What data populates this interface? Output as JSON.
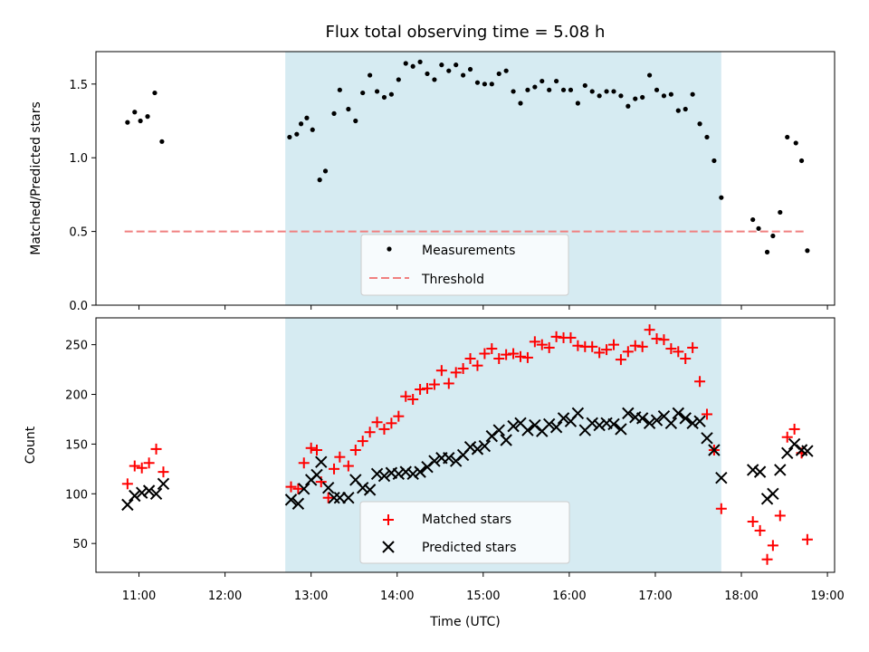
{
  "chart_data": [
    {
      "type": "scatter",
      "title": "Flux total observing time = 5.08 h",
      "ylabel": "Matched/Predicted stars",
      "ylim": [
        0,
        1.72
      ],
      "yticks": [
        "0.0",
        "0.5",
        "1.0",
        "1.5"
      ],
      "xlim": [
        "10:30",
        "19:05"
      ],
      "xtick_labels": [
        "11:00",
        "12:00",
        "13:00",
        "14:00",
        "15:00",
        "16:00",
        "17:00",
        "18:00",
        "19:00"
      ],
      "shaded_interval": [
        "12:42",
        "17:46"
      ],
      "legend_position": "lower center",
      "threshold": {
        "name": "Threshold",
        "y": 0.5,
        "x_range": [
          "10:50",
          "18:45"
        ],
        "color": "#f08080"
      },
      "series": [
        {
          "name": "Measurements",
          "color": "#000000",
          "marker": "dot",
          "points": [
            [
              "10:52",
              1.24
            ],
            [
              "10:57",
              1.31
            ],
            [
              "11:01",
              1.25
            ],
            [
              "11:06",
              1.28
            ],
            [
              "11:11",
              1.44
            ],
            [
              "11:16",
              1.11
            ],
            [
              "12:45",
              1.14
            ],
            [
              "12:50",
              1.16
            ],
            [
              "12:53",
              1.23
            ],
            [
              "12:57",
              1.27
            ],
            [
              "13:01",
              1.19
            ],
            [
              "13:06",
              0.85
            ],
            [
              "13:10",
              0.91
            ],
            [
              "13:16",
              1.3
            ],
            [
              "13:20",
              1.46
            ],
            [
              "13:26",
              1.33
            ],
            [
              "13:31",
              1.25
            ],
            [
              "13:36",
              1.44
            ],
            [
              "13:41",
              1.56
            ],
            [
              "13:46",
              1.45
            ],
            [
              "13:51",
              1.41
            ],
            [
              "13:56",
              1.43
            ],
            [
              "14:01",
              1.53
            ],
            [
              "14:06",
              1.64
            ],
            [
              "14:11",
              1.62
            ],
            [
              "14:16",
              1.65
            ],
            [
              "14:21",
              1.57
            ],
            [
              "14:26",
              1.53
            ],
            [
              "14:31",
              1.63
            ],
            [
              "14:36",
              1.59
            ],
            [
              "14:41",
              1.63
            ],
            [
              "14:46",
              1.56
            ],
            [
              "14:51",
              1.6
            ],
            [
              "14:56",
              1.51
            ],
            [
              "15:01",
              1.5
            ],
            [
              "15:06",
              1.5
            ],
            [
              "15:11",
              1.57
            ],
            [
              "15:16",
              1.59
            ],
            [
              "15:21",
              1.45
            ],
            [
              "15:26",
              1.37
            ],
            [
              "15:31",
              1.46
            ],
            [
              "15:36",
              1.48
            ],
            [
              "15:41",
              1.52
            ],
            [
              "15:46",
              1.46
            ],
            [
              "15:51",
              1.52
            ],
            [
              "15:56",
              1.46
            ],
            [
              "16:01",
              1.46
            ],
            [
              "16:06",
              1.37
            ],
            [
              "16:11",
              1.49
            ],
            [
              "16:16",
              1.45
            ],
            [
              "16:21",
              1.42
            ],
            [
              "16:26",
              1.45
            ],
            [
              "16:31",
              1.45
            ],
            [
              "16:36",
              1.42
            ],
            [
              "16:41",
              1.35
            ],
            [
              "16:46",
              1.4
            ],
            [
              "16:51",
              1.41
            ],
            [
              "16:56",
              1.56
            ],
            [
              "17:01",
              1.46
            ],
            [
              "17:06",
              1.42
            ],
            [
              "17:11",
              1.43
            ],
            [
              "17:16",
              1.32
            ],
            [
              "17:21",
              1.33
            ],
            [
              "17:26",
              1.43
            ],
            [
              "17:31",
              1.23
            ],
            [
              "17:36",
              1.14
            ],
            [
              "17:41",
              0.98
            ],
            [
              "17:46",
              0.73
            ],
            [
              "18:08",
              0.58
            ],
            [
              "18:12",
              0.52
            ],
            [
              "18:18",
              0.36
            ],
            [
              "18:22",
              0.47
            ],
            [
              "18:27",
              0.63
            ],
            [
              "18:32",
              1.14
            ],
            [
              "18:38",
              1.1
            ],
            [
              "18:42",
              0.98
            ],
            [
              "18:46",
              0.37
            ]
          ]
        }
      ]
    },
    {
      "type": "scatter",
      "ylabel": "Count",
      "xlabel": "Time (UTC)",
      "ylim": [
        21,
        277
      ],
      "yticks": [
        "50",
        "100",
        "150",
        "200",
        "250"
      ],
      "xlim": [
        "10:30",
        "19:05"
      ],
      "xtick_labels": [
        "11:00",
        "12:00",
        "13:00",
        "14:00",
        "15:00",
        "16:00",
        "17:00",
        "18:00",
        "19:00"
      ],
      "shaded_interval": [
        "12:42",
        "17:46"
      ],
      "legend_position": "lower center",
      "series": [
        {
          "name": "Matched stars",
          "color": "#ff0000",
          "marker": "plus",
          "points": [
            [
              "10:52",
              110
            ],
            [
              "10:57",
              128
            ],
            [
              "11:02",
              126
            ],
            [
              "11:07",
              131
            ],
            [
              "11:12",
              145
            ],
            [
              "11:17",
              122
            ],
            [
              "12:46",
              107
            ],
            [
              "12:51",
              105
            ],
            [
              "12:55",
              131
            ],
            [
              "13:00",
              146
            ],
            [
              "13:04",
              144
            ],
            [
              "13:07",
              112
            ],
            [
              "13:12",
              96
            ],
            [
              "13:16",
              125
            ],
            [
              "13:20",
              137
            ],
            [
              "13:26",
              128
            ],
            [
              "13:31",
              144
            ],
            [
              "13:36",
              153
            ],
            [
              "13:41",
              162
            ],
            [
              "13:46",
              172
            ],
            [
              "13:51",
              165
            ],
            [
              "13:56",
              171
            ],
            [
              "14:01",
              178
            ],
            [
              "14:06",
              198
            ],
            [
              "14:11",
              195
            ],
            [
              "14:16",
              205
            ],
            [
              "14:21",
              206
            ],
            [
              "14:26",
              210
            ],
            [
              "14:31",
              224
            ],
            [
              "14:36",
              211
            ],
            [
              "14:41",
              222
            ],
            [
              "14:46",
              226
            ],
            [
              "14:51",
              236
            ],
            [
              "14:56",
              229
            ],
            [
              "15:01",
              241
            ],
            [
              "15:06",
              246
            ],
            [
              "15:11",
              236
            ],
            [
              "15:16",
              240
            ],
            [
              "15:21",
              241
            ],
            [
              "15:26",
              238
            ],
            [
              "15:31",
              237
            ],
            [
              "15:36",
              253
            ],
            [
              "15:41",
              250
            ],
            [
              "15:46",
              247
            ],
            [
              "15:51",
              258
            ],
            [
              "15:56",
              257
            ],
            [
              "16:01",
              257
            ],
            [
              "16:06",
              249
            ],
            [
              "16:11",
              248
            ],
            [
              "16:16",
              248
            ],
            [
              "16:21",
              242
            ],
            [
              "16:26",
              245
            ],
            [
              "16:31",
              250
            ],
            [
              "16:36",
              235
            ],
            [
              "16:41",
              243
            ],
            [
              "16:46",
              249
            ],
            [
              "16:51",
              248
            ],
            [
              "16:56",
              265
            ],
            [
              "17:01",
              256
            ],
            [
              "17:06",
              255
            ],
            [
              "17:11",
              246
            ],
            [
              "17:16",
              243
            ],
            [
              "17:21",
              236
            ],
            [
              "17:26",
              247
            ],
            [
              "17:31",
              213
            ],
            [
              "17:36",
              180
            ],
            [
              "17:41",
              144
            ],
            [
              "17:46",
              85
            ],
            [
              "18:08",
              72
            ],
            [
              "18:13",
              63
            ],
            [
              "18:18",
              34
            ],
            [
              "18:22",
              48
            ],
            [
              "18:27",
              78
            ],
            [
              "18:32",
              157
            ],
            [
              "18:37",
              165
            ],
            [
              "18:42",
              141
            ],
            [
              "18:46",
              54
            ]
          ]
        },
        {
          "name": "Predicted stars",
          "color": "#000000",
          "marker": "x",
          "points": [
            [
              "10:52",
              89
            ],
            [
              "10:57",
              98
            ],
            [
              "11:02",
              101
            ],
            [
              "11:07",
              103
            ],
            [
              "11:12",
              100
            ],
            [
              "11:17",
              110
            ],
            [
              "12:46",
              94
            ],
            [
              "12:51",
              90
            ],
            [
              "12:55",
              105
            ],
            [
              "13:00",
              114
            ],
            [
              "13:04",
              119
            ],
            [
              "13:07",
              132
            ],
            [
              "13:12",
              106
            ],
            [
              "13:16",
              96
            ],
            [
              "13:20",
              96
            ],
            [
              "13:26",
              96
            ],
            [
              "13:31",
              114
            ],
            [
              "13:36",
              106
            ],
            [
              "13:41",
              104
            ],
            [
              "13:46",
              120
            ],
            [
              "13:51",
              118
            ],
            [
              "13:56",
              121
            ],
            [
              "14:01",
              120
            ],
            [
              "14:06",
              122
            ],
            [
              "14:11",
              120
            ],
            [
              "14:16",
              122
            ],
            [
              "14:21",
              127
            ],
            [
              "14:26",
              133
            ],
            [
              "14:31",
              136
            ],
            [
              "14:36",
              136
            ],
            [
              "14:41",
              133
            ],
            [
              "14:46",
              139
            ],
            [
              "14:51",
              147
            ],
            [
              "14:56",
              145
            ],
            [
              "15:01",
              148
            ],
            [
              "15:06",
              158
            ],
            [
              "15:11",
              164
            ],
            [
              "15:16",
              154
            ],
            [
              "15:21",
              168
            ],
            [
              "15:26",
              171
            ],
            [
              "15:31",
              164
            ],
            [
              "15:36",
              169
            ],
            [
              "15:41",
              163
            ],
            [
              "15:46",
              170
            ],
            [
              "15:51",
              167
            ],
            [
              "15:56",
              176
            ],
            [
              "16:01",
              173
            ],
            [
              "16:06",
              181
            ],
            [
              "16:11",
              164
            ],
            [
              "16:16",
              171
            ],
            [
              "16:21",
              169
            ],
            [
              "16:26",
              171
            ],
            [
              "16:31",
              170
            ],
            [
              "16:36",
              165
            ],
            [
              "16:41",
              181
            ],
            [
              "16:46",
              177
            ],
            [
              "16:51",
              176
            ],
            [
              "16:56",
              171
            ],
            [
              "17:01",
              174
            ],
            [
              "17:06",
              178
            ],
            [
              "17:11",
              171
            ],
            [
              "17:16",
              181
            ],
            [
              "17:21",
              176
            ],
            [
              "17:26",
              171
            ],
            [
              "17:31",
              173
            ],
            [
              "17:36",
              156
            ],
            [
              "17:41",
              144
            ],
            [
              "17:46",
              116
            ],
            [
              "18:08",
              124
            ],
            [
              "18:13",
              122
            ],
            [
              "18:18",
              95
            ],
            [
              "18:22",
              100
            ],
            [
              "18:27",
              124
            ],
            [
              "18:32",
              141
            ],
            [
              "18:37",
              150
            ],
            [
              "18:42",
              144
            ],
            [
              "18:46",
              143
            ]
          ]
        }
      ]
    }
  ]
}
